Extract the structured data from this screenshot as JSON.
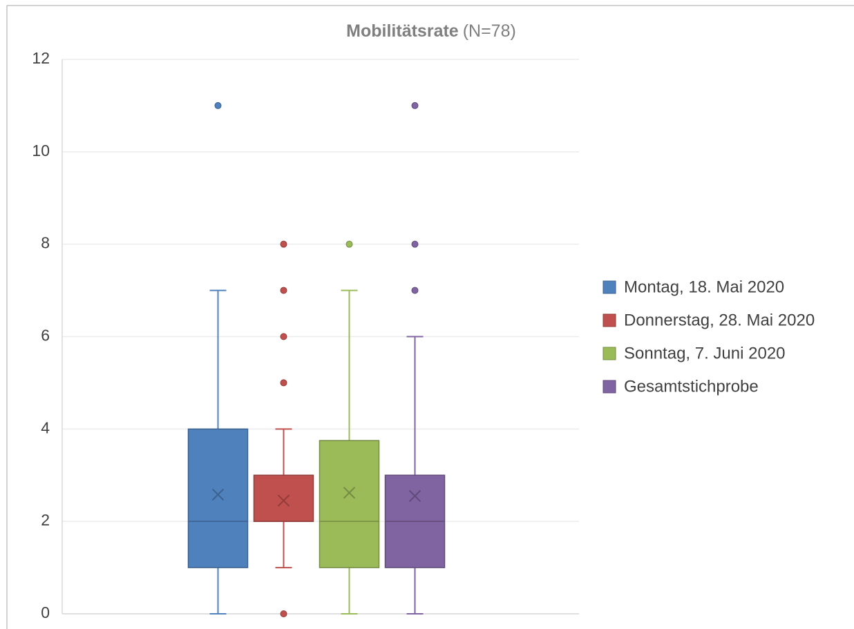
{
  "chart_data": {
    "type": "box",
    "title": "Mobilitätsrate",
    "subtitle": "(N=78)",
    "ylim": [
      0,
      12
    ],
    "yticks": [
      0,
      2,
      4,
      6,
      8,
      10,
      12
    ],
    "grid": true,
    "legend": "right",
    "series": [
      {
        "name": "Montag, 18. Mai 2020",
        "color": "#4f81bd",
        "min": 0,
        "q1": 1,
        "median": 2,
        "q3": 4,
        "max": 7,
        "mean": 2.58,
        "outliers": [
          11
        ]
      },
      {
        "name": "Donnerstag, 28. Mai 2020",
        "color": "#c0504d",
        "min": 1,
        "q1": 2,
        "median": 2,
        "q3": 3,
        "max": 4,
        "mean": 2.45,
        "outliers": [
          0,
          5,
          6,
          7,
          8
        ]
      },
      {
        "name": "Sonntag, 7. Juni 2020",
        "color": "#9bbb59",
        "min": 0,
        "q1": 1,
        "median": 2,
        "q3": 3.75,
        "max": 7,
        "mean": 2.62,
        "outliers": [
          8
        ]
      },
      {
        "name": "Gesamtstichprobe",
        "color": "#8064a2",
        "min": 0,
        "q1": 1,
        "median": 2,
        "q3": 3,
        "max": 6,
        "mean": 2.55,
        "outliers": [
          7,
          8,
          11
        ]
      }
    ]
  }
}
